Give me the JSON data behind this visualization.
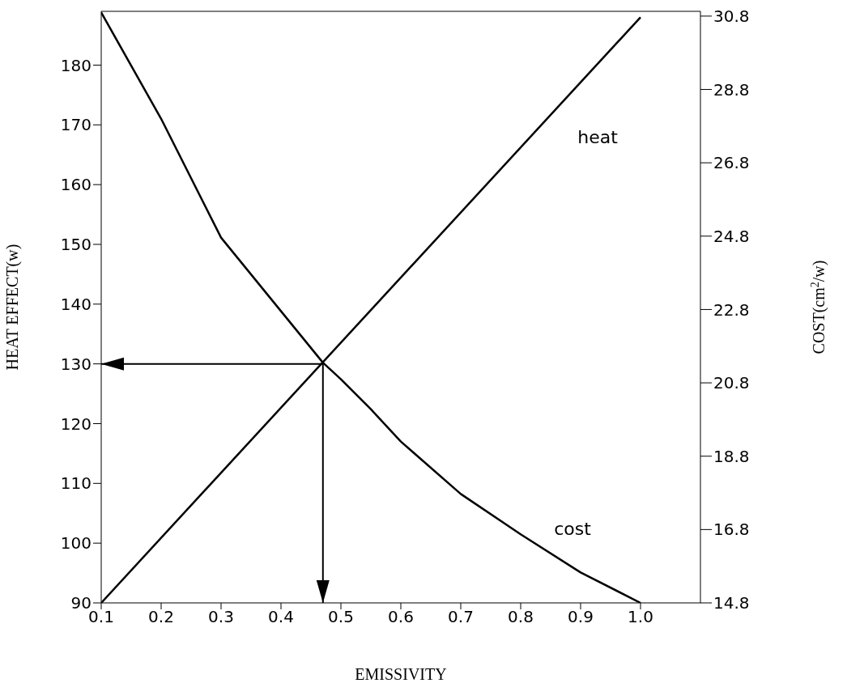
{
  "chart_data": {
    "type": "line",
    "xlabel": "EMISSIVITY",
    "ylabel": "HEAT EFFECT(w)",
    "y2label": "COST(cm$^{2}$/w)",
    "xlim": [
      0.1,
      1.1
    ],
    "xticks": [
      {
        "value": 0.1,
        "label": "0.1"
      },
      {
        "value": 0.2,
        "label": "0.2"
      },
      {
        "value": 0.3,
        "label": "0.3"
      },
      {
        "value": 0.4,
        "label": "0.4"
      },
      {
        "value": 0.5,
        "label": "0.5"
      },
      {
        "value": 0.6,
        "label": "0.6"
      },
      {
        "value": 0.7,
        "label": "0.7"
      },
      {
        "value": 0.8,
        "label": "0.8"
      },
      {
        "value": 0.9,
        "label": "0.9"
      },
      {
        "value": 1.0,
        "label": "1.0"
      }
    ],
    "ylim": [
      90,
      189
    ],
    "yticks": [
      90,
      100,
      110,
      120,
      130,
      140,
      150,
      160,
      170,
      180
    ],
    "y2lim": [
      14.8,
      30.93
    ],
    "y2ticks": [
      14.8,
      16.8,
      18.8,
      20.8,
      22.8,
      24.8,
      26.8,
      28.8,
      30.8
    ],
    "series": [
      {
        "name": "heat",
        "color": "#000000",
        "x": [
          0.1,
          1.0
        ],
        "values": [
          90,
          188
        ]
      },
      {
        "name": "cost",
        "color": "#000000",
        "axis": "y2",
        "x": [
          0.1,
          0.2,
          0.3,
          0.47,
          0.5,
          0.55,
          0.6,
          0.7,
          0.8,
          0.9,
          1.0
        ],
        "values": [
          30.9,
          28.0,
          24.76,
          21.35,
          20.9,
          20.08,
          19.2,
          17.77,
          16.67,
          15.63,
          14.8
        ]
      }
    ],
    "ref_lines": [
      {
        "axis": "y",
        "value": 130
      },
      {
        "axis": "x",
        "value": 0.47
      }
    ],
    "marker": "none",
    "line_style": "solid"
  }
}
